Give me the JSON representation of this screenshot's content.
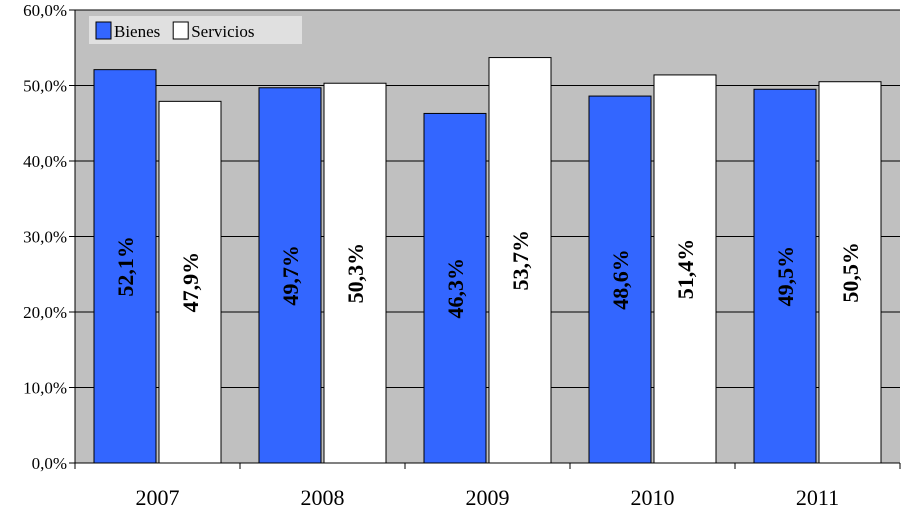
{
  "chart_data": {
    "type": "bar",
    "categories": [
      "2007",
      "2008",
      "2009",
      "2010",
      "2011"
    ],
    "series": [
      {
        "name": "Bienes",
        "values": [
          52.1,
          49.7,
          46.3,
          48.6,
          49.5
        ],
        "labels": [
          "52,1%",
          "49,7%",
          "46,3%",
          "48,6%",
          "49,5%"
        ],
        "color": "#3366ff"
      },
      {
        "name": "Servicios",
        "values": [
          47.9,
          50.3,
          53.7,
          51.4,
          50.5
        ],
        "labels": [
          "47,9%",
          "50,3%",
          "53,7%",
          "51,4%",
          "50,5%"
        ],
        "color": "#ffffff"
      }
    ],
    "ylim": [
      0,
      60
    ],
    "yticks": [
      0,
      10,
      20,
      30,
      40,
      50,
      60
    ],
    "ytick_labels": [
      "0,0%",
      "10,0%",
      "20,0%",
      "30,0%",
      "40,0%",
      "50,0%",
      "60,0%"
    ],
    "grid": true,
    "plot_background": "#c0c0c0",
    "legend_position": "top-left"
  }
}
